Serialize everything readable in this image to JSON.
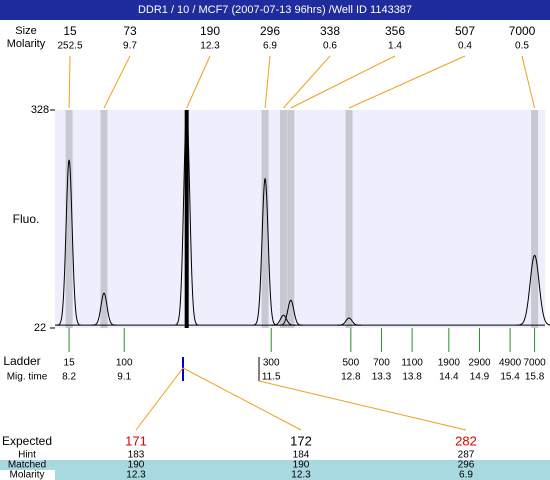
{
  "header": {
    "title": "DDR1 / 10 / MCF7 (2007-07-13 96hrs) /Well ID 1143387"
  },
  "chart_data": {
    "type": "electropherogram",
    "y_label": "Fluo.",
    "ylim": [
      22,
      328
    ],
    "yticks": [
      22,
      328
    ],
    "xlim": [
      7.97,
      15.97
    ],
    "baseline": 26,
    "peaks": {
      "row_labels": [
        "Size",
        "Molarity"
      ],
      "sizes": [
        15,
        73,
        190,
        296,
        338,
        356,
        507,
        7000
      ],
      "molarity": [
        252.5,
        9.7,
        12.3,
        6.9,
        0.6,
        1.4,
        0.4,
        0.5
      ],
      "x": [
        8.2,
        8.77,
        10.12,
        11.4,
        11.7,
        11.82,
        12.77,
        15.8
      ],
      "heights": [
        258,
        71,
        328,
        232,
        40,
        61,
        36,
        124
      ],
      "band_color": "#c8c8d2",
      "selected_color": "#000000"
    },
    "ladder": {
      "label": "Ladder",
      "time_label": "Mig. time",
      "sizes": [
        15,
        100,
        300,
        500,
        700,
        1100,
        1900,
        2900,
        4900,
        7000
      ],
      "x": [
        8.2,
        9.1,
        11.5,
        12.8,
        13.3,
        13.8,
        14.4,
        14.9,
        15.4,
        15.8
      ],
      "color": "#2e8b2e"
    }
  },
  "table": {
    "row_labels": [
      "Expected",
      "Hint",
      "Matched",
      "Molarity"
    ],
    "expected": [
      171,
      172,
      282
    ],
    "expected_colors": [
      "#e00000",
      "#000000",
      "#e00000"
    ],
    "hint": [
      183,
      184,
      287
    ],
    "matched": [
      190,
      190,
      296
    ],
    "molarity": [
      12.3,
      12.3,
      6.9
    ]
  }
}
